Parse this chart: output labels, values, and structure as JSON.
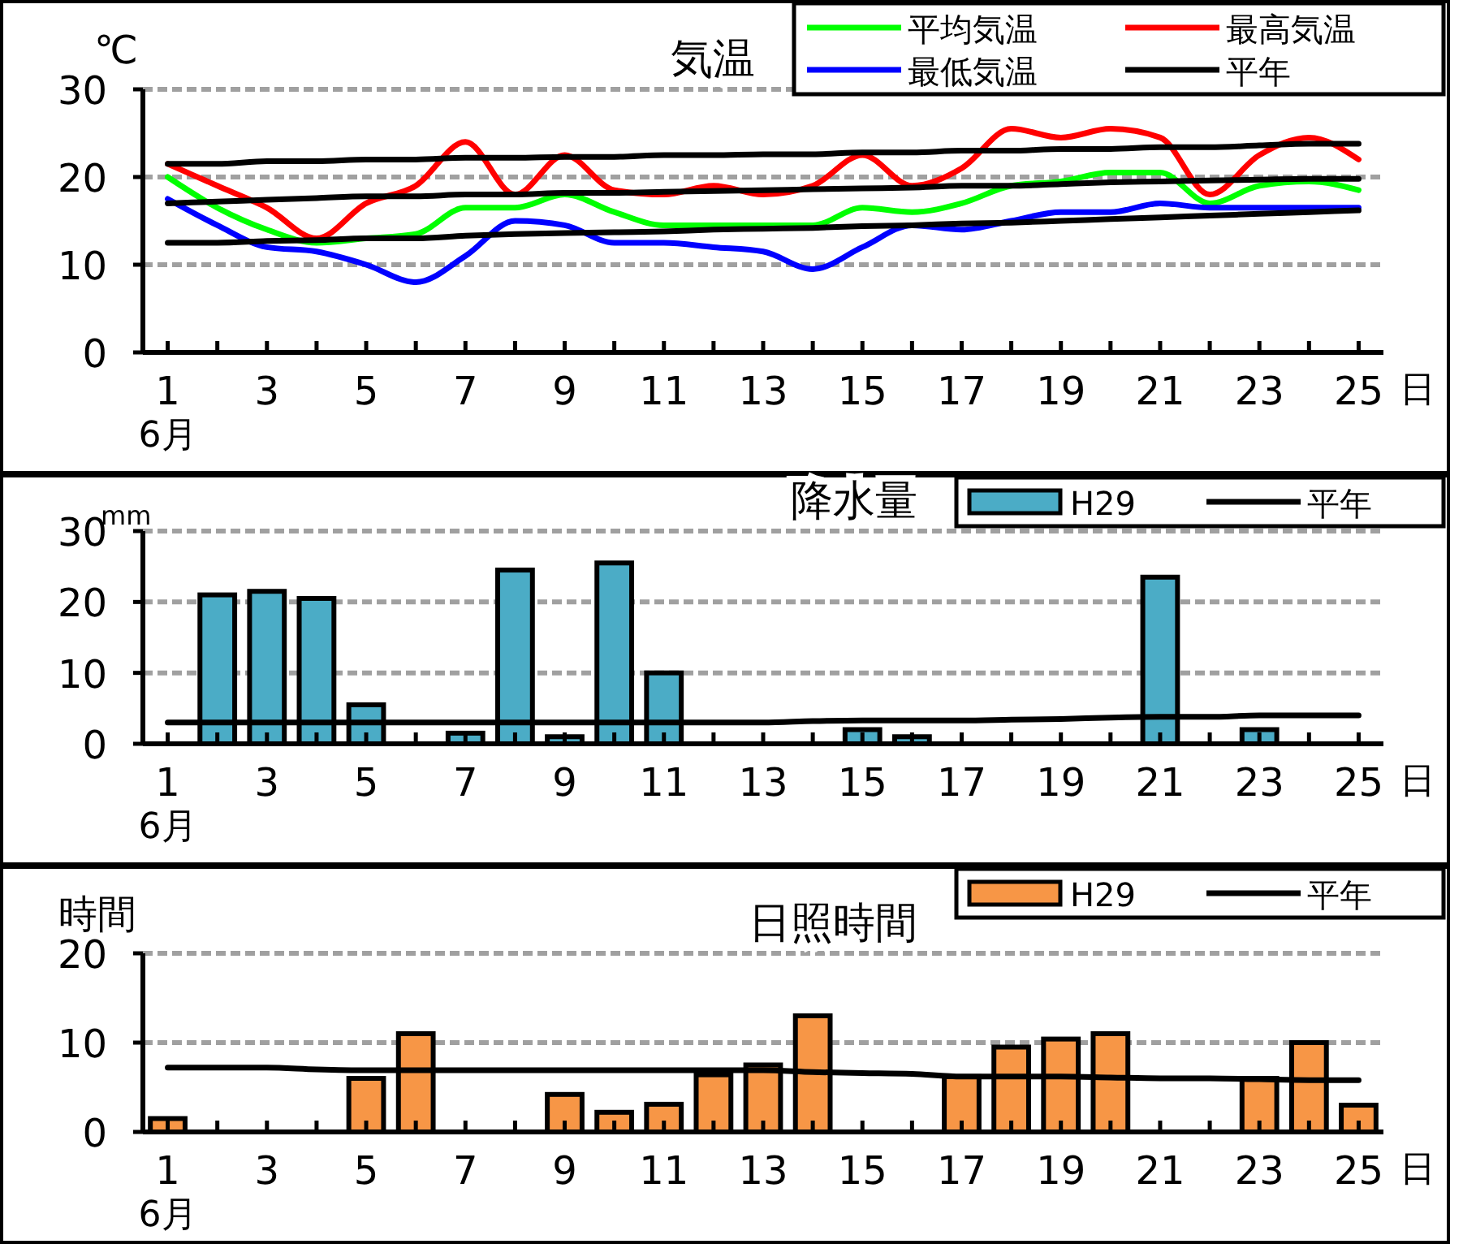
{
  "chart_data": [
    {
      "type": "line",
      "title": "気温",
      "ylabel": "℃",
      "x": [
        1,
        2,
        3,
        4,
        5,
        6,
        7,
        8,
        9,
        10,
        11,
        12,
        13,
        14,
        15,
        16,
        17,
        18,
        19,
        20,
        21,
        22,
        23,
        24,
        25
      ],
      "xlim": [
        0.5,
        25.5
      ],
      "xticks": [
        1,
        {
          "value": 2,
          "label": null
        },
        3,
        {
          "value": 4,
          "label": null
        },
        5,
        {
          "value": 6,
          "label": null
        },
        7,
        {
          "value": 8,
          "label": null
        },
        9,
        {
          "value": 10,
          "label": null
        },
        11,
        {
          "value": 12,
          "label": null
        },
        13,
        {
          "value": 14,
          "label": null
        },
        15,
        {
          "value": 16,
          "label": null
        },
        17,
        {
          "value": 18,
          "label": null
        },
        19,
        {
          "value": 20,
          "label": null
        },
        21,
        {
          "value": 22,
          "label": null
        },
        23,
        {
          "value": 24,
          "label": null
        },
        25
      ],
      "ylim": [
        0,
        30
      ],
      "yticks": [
        0,
        10,
        20,
        30
      ],
      "grid": "y",
      "legend": "top right",
      "annotations": [
        "日",
        "6月"
      ],
      "series": [
        {
          "name": "平均気温",
          "color": "#00ff00",
          "values": [
            20,
            16.5,
            14,
            12.5,
            13,
            13.5,
            16.5,
            16.5,
            18,
            16,
            14.5,
            14.5,
            14.5,
            14.5,
            16.5,
            16,
            17,
            19,
            19.5,
            20.5,
            20.5,
            17,
            19,
            19.5,
            18.5
          ]
        },
        {
          "name": "最高気温",
          "color": "#ff0000",
          "values": [
            21.5,
            19,
            16.5,
            13,
            17,
            19,
            24,
            18,
            22.5,
            18.5,
            18,
            19,
            18,
            19,
            22.5,
            19,
            21,
            25.5,
            24.5,
            25.5,
            24.5,
            18,
            22.5,
            24.5,
            22
          ]
        },
        {
          "name": "最低気温",
          "color": "#0000ff",
          "values": [
            17.5,
            14.5,
            12,
            11.5,
            10,
            8,
            11,
            15,
            14.5,
            12.5,
            12.5,
            12,
            11.5,
            9.5,
            12,
            14.5,
            14,
            15,
            16,
            16,
            17,
            16.5,
            16.5,
            16.5,
            16.5
          ]
        },
        {
          "name": "平年",
          "color": "#000000",
          "values": [
            21.5,
            21.5,
            21.8,
            21.8,
            22,
            22,
            22.2,
            22.2,
            22.3,
            22.3,
            22.5,
            22.5,
            22.6,
            22.6,
            22.8,
            22.8,
            23,
            23,
            23.2,
            23.2,
            23.4,
            23.4,
            23.6,
            23.8,
            23.8
          ]
        },
        {
          "color": "#000000",
          "values": [
            17,
            17.2,
            17.4,
            17.6,
            17.8,
            17.8,
            18,
            18,
            18.2,
            18.2,
            18.3,
            18.4,
            18.5,
            18.6,
            18.7,
            18.8,
            19,
            19,
            19.2,
            19.4,
            19.5,
            19.6,
            19.7,
            19.8,
            19.8
          ]
        },
        {
          "color": "#000000",
          "values": [
            12.5,
            12.5,
            12.7,
            12.8,
            13,
            13,
            13.3,
            13.5,
            13.6,
            13.7,
            13.8,
            14,
            14.1,
            14.2,
            14.4,
            14.5,
            14.7,
            14.8,
            15,
            15.2,
            15.4,
            15.6,
            15.8,
            16,
            16.2
          ]
        }
      ]
    },
    {
      "type": "bar",
      "title": "降水量",
      "ylabel": "mm",
      "x": [
        1,
        2,
        3,
        4,
        5,
        6,
        7,
        8,
        9,
        10,
        11,
        12,
        13,
        14,
        15,
        16,
        17,
        18,
        19,
        20,
        21,
        22,
        23,
        24,
        25
      ],
      "xlim": [
        0.5,
        25.5
      ],
      "xticks": [
        1,
        {
          "value": 2,
          "label": null
        },
        3,
        {
          "value": 4,
          "label": null
        },
        5,
        {
          "value": 6,
          "label": null
        },
        7,
        {
          "value": 8,
          "label": null
        },
        9,
        {
          "value": 10,
          "label": null
        },
        11,
        {
          "value": 12,
          "label": null
        },
        13,
        {
          "value": 14,
          "label": null
        },
        15,
        {
          "value": 16,
          "label": null
        },
        17,
        {
          "value": 18,
          "label": null
        },
        19,
        {
          "value": 20,
          "label": null
        },
        21,
        {
          "value": 22,
          "label": null
        },
        23,
        {
          "value": 24,
          "label": null
        },
        25
      ],
      "ylim": [
        0,
        30
      ],
      "yticks": [
        0,
        10,
        20,
        30
      ],
      "grid": "y",
      "legend": "top right",
      "annotations": [
        "日",
        "6月"
      ],
      "series": [
        {
          "name": "H29",
          "color": "#4bacc6",
          "values": [
            0,
            21,
            21.5,
            20.5,
            5.5,
            0,
            1.5,
            24.5,
            1,
            25.5,
            10,
            0,
            0,
            0,
            2,
            1,
            0,
            0,
            0,
            0,
            23.5,
            0,
            2,
            0,
            0
          ]
        },
        {
          "name": "平年",
          "type": "line",
          "color": "#000000",
          "values": [
            3,
            3,
            3,
            3,
            3,
            3,
            3,
            3,
            3,
            3,
            3,
            3,
            3,
            3.2,
            3.3,
            3.3,
            3.3,
            3.4,
            3.5,
            3.7,
            3.8,
            3.8,
            4,
            4,
            4
          ]
        }
      ]
    },
    {
      "type": "bar",
      "title": "日照時間",
      "ylabel": "時間",
      "x": [
        1,
        2,
        3,
        4,
        5,
        6,
        7,
        8,
        9,
        10,
        11,
        12,
        13,
        14,
        15,
        16,
        17,
        18,
        19,
        20,
        21,
        22,
        23,
        24,
        25
      ],
      "xlim": [
        0.5,
        25.5
      ],
      "xticks": [
        1,
        {
          "value": 2,
          "label": null
        },
        3,
        {
          "value": 4,
          "label": null
        },
        5,
        {
          "value": 6,
          "label": null
        },
        7,
        {
          "value": 8,
          "label": null
        },
        9,
        {
          "value": 10,
          "label": null
        },
        11,
        {
          "value": 12,
          "label": null
        },
        13,
        {
          "value": 14,
          "label": null
        },
        15,
        {
          "value": 16,
          "label": null
        },
        17,
        {
          "value": 18,
          "label": null
        },
        19,
        {
          "value": 20,
          "label": null
        },
        21,
        {
          "value": 22,
          "label": null
        },
        23,
        {
          "value": 24,
          "label": null
        },
        25
      ],
      "ylim": [
        0,
        20
      ],
      "yticks": [
        0,
        10,
        20
      ],
      "grid": "y",
      "legend": "top right",
      "annotations": [
        "日",
        "6月"
      ],
      "series": [
        {
          "name": "H29",
          "color": "#f79646",
          "values": [
            1.5,
            0,
            0,
            0,
            6,
            11,
            0,
            0,
            4.2,
            2.2,
            3.1,
            6.4,
            7.5,
            13,
            0,
            0,
            6.2,
            9.5,
            10.4,
            11,
            0,
            0,
            6,
            10,
            3
          ]
        },
        {
          "name": "平年",
          "type": "line",
          "color": "#000000",
          "values": [
            7.2,
            7.2,
            7.2,
            7,
            6.9,
            6.9,
            6.9,
            6.9,
            6.9,
            6.9,
            6.9,
            6.9,
            6.9,
            6.7,
            6.6,
            6.5,
            6.2,
            6.2,
            6.2,
            6.1,
            6,
            6,
            5.9,
            5.8,
            5.8
          ]
        }
      ]
    }
  ]
}
